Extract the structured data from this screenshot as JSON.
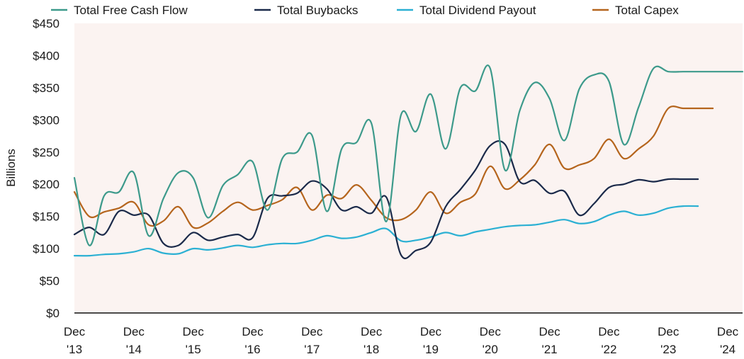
{
  "chart_data": {
    "type": "line",
    "ylabel": "Billions",
    "ylim": [
      0,
      450
    ],
    "yticks": [
      "$0",
      "$50",
      "$100",
      "$150",
      "$200",
      "$250",
      "$300",
      "$350",
      "$400",
      "$450"
    ],
    "xlabels": [
      {
        "x": 2013.75,
        "line1": "Dec",
        "line2": "'13"
      },
      {
        "x": 2014.75,
        "line1": "Dec",
        "line2": "'14"
      },
      {
        "x": 2015.75,
        "line1": "Dec",
        "line2": "'15"
      },
      {
        "x": 2016.75,
        "line1": "Dec",
        "line2": "'16"
      },
      {
        "x": 2017.75,
        "line1": "Dec",
        "line2": "'17"
      },
      {
        "x": 2018.75,
        "line1": "Dec",
        "line2": "'18"
      },
      {
        "x": 2019.75,
        "line1": "Dec",
        "line2": "'19"
      },
      {
        "x": 2020.75,
        "line1": "Dec",
        "line2": "'20"
      },
      {
        "x": 2021.75,
        "line1": "Dec",
        "line2": "'21"
      },
      {
        "x": 2022.75,
        "line1": "Dec",
        "line2": "'22"
      },
      {
        "x": 2023.75,
        "line1": "Dec",
        "line2": "'23"
      },
      {
        "x": 2024.75,
        "line1": "Dec",
        "line2": "'24"
      }
    ],
    "xlim": [
      2013.75,
      2025.0
    ],
    "grid": false,
    "legend": "top",
    "series": [
      {
        "name": "Total Free Cash Flow",
        "color": "#3d9a8b",
        "x": [
          2013.75,
          2014.0,
          2014.25,
          2014.5,
          2014.75,
          2015.0,
          2015.25,
          2015.5,
          2015.75,
          2016.0,
          2016.25,
          2016.5,
          2016.75,
          2017.0,
          2017.25,
          2017.5,
          2017.75,
          2018.0,
          2018.25,
          2018.5,
          2018.75,
          2019.0,
          2019.25,
          2019.5,
          2019.75,
          2020.0,
          2020.25,
          2020.5,
          2020.75,
          2021.0,
          2021.25,
          2021.5,
          2021.75,
          2022.0,
          2022.25,
          2022.5,
          2022.75,
          2023.0,
          2023.25,
          2023.5,
          2023.75,
          2024.0,
          2024.25,
          2024.5,
          2024.75,
          2025.0
        ],
        "values": [
          210,
          105,
          182,
          188,
          218,
          120,
          178,
          218,
          210,
          148,
          198,
          215,
          235,
          160,
          240,
          250,
          276,
          158,
          255,
          265,
          295,
          142,
          308,
          282,
          340,
          255,
          350,
          345,
          380,
          222,
          315,
          358,
          333,
          268,
          348,
          370,
          360,
          262,
          320,
          380,
          375,
          375,
          375,
          375,
          375,
          375
        ]
      },
      {
        "name": "Total Buybacks",
        "color": "#1b2a4a",
        "x": [
          2013.75,
          2014.0,
          2014.25,
          2014.5,
          2014.75,
          2015.0,
          2015.25,
          2015.5,
          2015.75,
          2016.0,
          2016.25,
          2016.5,
          2016.75,
          2017.0,
          2017.25,
          2017.5,
          2017.75,
          2018.0,
          2018.25,
          2018.5,
          2018.75,
          2019.0,
          2019.25,
          2019.5,
          2019.75,
          2020.0,
          2020.25,
          2020.5,
          2020.75,
          2021.0,
          2021.25,
          2021.5,
          2021.75,
          2022.0,
          2022.25,
          2022.5,
          2022.75,
          2023.0,
          2023.25,
          2023.5,
          2023.75,
          2024.0,
          2024.25
        ],
        "values": [
          122,
          133,
          122,
          158,
          152,
          152,
          108,
          105,
          125,
          113,
          118,
          122,
          117,
          178,
          182,
          186,
          205,
          193,
          160,
          165,
          155,
          180,
          90,
          97,
          110,
          165,
          192,
          222,
          260,
          262,
          204,
          206,
          186,
          189,
          152,
          170,
          195,
          200,
          207,
          204,
          208,
          208,
          208
        ]
      },
      {
        "name": "Total Dividend Payout",
        "color": "#2bb0d3",
        "x": [
          2013.75,
          2014.0,
          2014.25,
          2014.5,
          2014.75,
          2015.0,
          2015.25,
          2015.5,
          2015.75,
          2016.0,
          2016.25,
          2016.5,
          2016.75,
          2017.0,
          2017.25,
          2017.5,
          2017.75,
          2018.0,
          2018.25,
          2018.5,
          2018.75,
          2019.0,
          2019.25,
          2019.5,
          2019.75,
          2020.0,
          2020.25,
          2020.5,
          2020.75,
          2021.0,
          2021.25,
          2021.5,
          2021.75,
          2022.0,
          2022.25,
          2022.5,
          2022.75,
          2023.0,
          2023.25,
          2023.5,
          2023.75,
          2024.0,
          2024.25
        ],
        "values": [
          89,
          89,
          91,
          92,
          95,
          100,
          93,
          92,
          100,
          98,
          101,
          105,
          102,
          106,
          108,
          108,
          113,
          120,
          116,
          118,
          125,
          131,
          112,
          113,
          118,
          125,
          120,
          126,
          130,
          134,
          136,
          137,
          141,
          145,
          139,
          142,
          152,
          158,
          152,
          155,
          163,
          166,
          166
        ]
      },
      {
        "name": "Total Capex",
        "color": "#b5651d",
        "x": [
          2013.75,
          2014.0,
          2014.25,
          2014.5,
          2014.75,
          2015.0,
          2015.25,
          2015.5,
          2015.75,
          2016.0,
          2016.25,
          2016.5,
          2016.75,
          2017.0,
          2017.25,
          2017.5,
          2017.75,
          2018.0,
          2018.25,
          2018.5,
          2018.75,
          2019.0,
          2019.25,
          2019.5,
          2019.75,
          2020.0,
          2020.25,
          2020.5,
          2020.75,
          2021.0,
          2021.25,
          2021.5,
          2021.75,
          2022.0,
          2022.25,
          2022.5,
          2022.75,
          2023.0,
          2023.25,
          2023.5,
          2023.75,
          2024.0,
          2024.25,
          2024.5
        ],
        "values": [
          188,
          150,
          157,
          163,
          172,
          137,
          143,
          165,
          133,
          140,
          158,
          172,
          160,
          167,
          176,
          195,
          160,
          183,
          178,
          199,
          175,
          148,
          145,
          160,
          188,
          155,
          172,
          185,
          228,
          193,
          207,
          230,
          262,
          225,
          230,
          240,
          270,
          240,
          255,
          275,
          318,
          318,
          318,
          318
        ]
      }
    ]
  }
}
